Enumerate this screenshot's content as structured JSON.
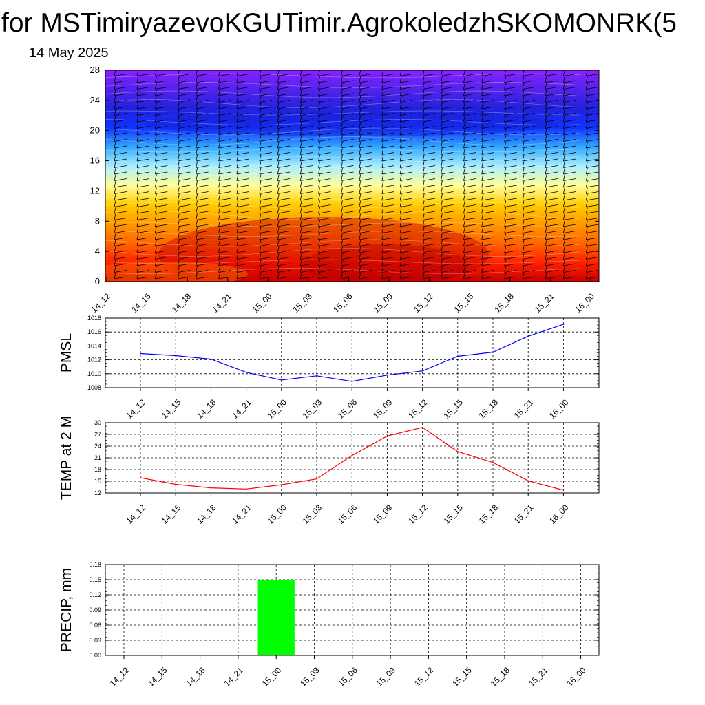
{
  "header": {
    "title": "for MSTimiryazevoKGUTimir.AgrokoledzhSKOMONRK(5",
    "date": "14 May 2025"
  },
  "time_labels": [
    "14_12",
    "14_15",
    "14_18",
    "14_21",
    "15_00",
    "15_03",
    "15_06",
    "15_09",
    "15_12",
    "15_15",
    "15_18",
    "15_21",
    "16_00"
  ],
  "colors": {
    "pmsl_line": "#0000ff",
    "temp_line": "#ff0000",
    "precip_bar": "#00ff00",
    "grid": "#000000",
    "wind_barb": "#000000"
  },
  "chart_data": [
    {
      "type": "heatmap",
      "name": "cross-section",
      "y_ticks": [
        0,
        4,
        8,
        12,
        16,
        20,
        24,
        28
      ],
      "ylim": [
        0,
        28
      ],
      "colormap": [
        "#cc0000",
        "#ff2200",
        "#ff6600",
        "#ff9900",
        "#ffcc00",
        "#ffff99",
        "#aaeeff",
        "#33aaff",
        "#1133ff",
        "#2222dd",
        "#5522ee",
        "#8822ff"
      ],
      "overlay": "wind barbs"
    },
    {
      "type": "line",
      "ylabel": "PMSL",
      "categories": [
        "14_12",
        "14_15",
        "14_18",
        "14_21",
        "15_00",
        "15_03",
        "15_06",
        "15_09",
        "15_12",
        "15_15",
        "15_18",
        "15_21",
        "16_00"
      ],
      "values": [
        1012.9,
        1012.6,
        1012.1,
        1010.2,
        1009.1,
        1009.7,
        1008.9,
        1009.8,
        1010.4,
        1012.5,
        1013.1,
        1015.4,
        1017.1
      ],
      "ylim": [
        1008,
        1018
      ],
      "y_ticks": [
        1008,
        1010,
        1012,
        1014,
        1016,
        1018
      ]
    },
    {
      "type": "line",
      "ylabel": "TEMP at 2 M",
      "categories": [
        "14_12",
        "14_15",
        "14_18",
        "14_21",
        "15_00",
        "15_03",
        "15_06",
        "15_09",
        "15_12",
        "15_15",
        "15_18",
        "15_21",
        "16_00"
      ],
      "values": [
        15.9,
        14.2,
        13.3,
        13.0,
        14.1,
        15.6,
        21.6,
        26.6,
        28.8,
        22.6,
        19.8,
        15.1,
        12.7
      ],
      "ylim": [
        12,
        30
      ],
      "y_ticks": [
        12,
        15,
        18,
        21,
        24,
        27,
        30
      ]
    },
    {
      "type": "bar",
      "ylabel": "PRECIP, mm",
      "categories": [
        "14_12",
        "14_15",
        "14_18",
        "14_21",
        "15_00",
        "15_03",
        "15_06",
        "15_09",
        "15_12",
        "15_15",
        "15_18",
        "15_21",
        "16_00"
      ],
      "values": [
        0,
        0,
        0,
        0,
        0.15,
        0,
        0,
        0,
        0,
        0,
        0,
        0,
        0
      ],
      "ylim": [
        0,
        0.18
      ],
      "y_ticks": [
        "0.00",
        "0.03",
        "0.06",
        "0.09",
        "0.12",
        "0.15",
        "0.18"
      ]
    }
  ]
}
